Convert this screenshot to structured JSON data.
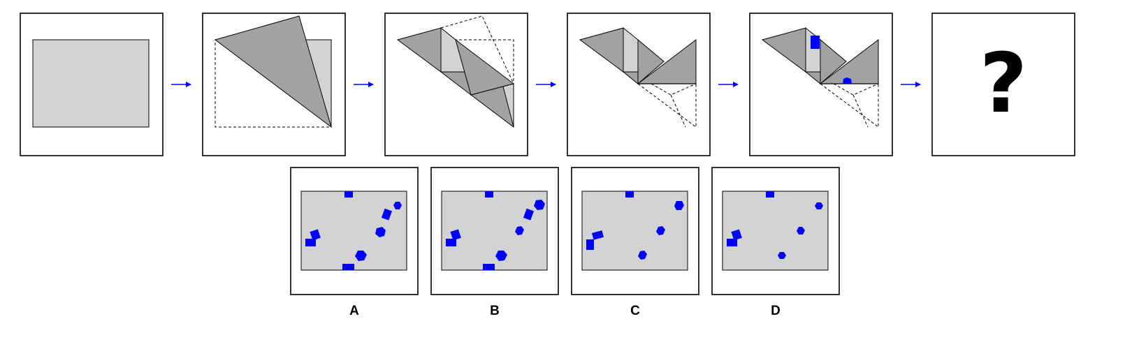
{
  "puzzle": {
    "unknown_symbol": "?",
    "option_labels": [
      "A",
      "B",
      "C",
      "D"
    ]
  },
  "colors": {
    "paper": "#d3d3d3",
    "fold_dark": "#a2a2a2",
    "accent": "#0000ff",
    "frame": "#000000"
  }
}
